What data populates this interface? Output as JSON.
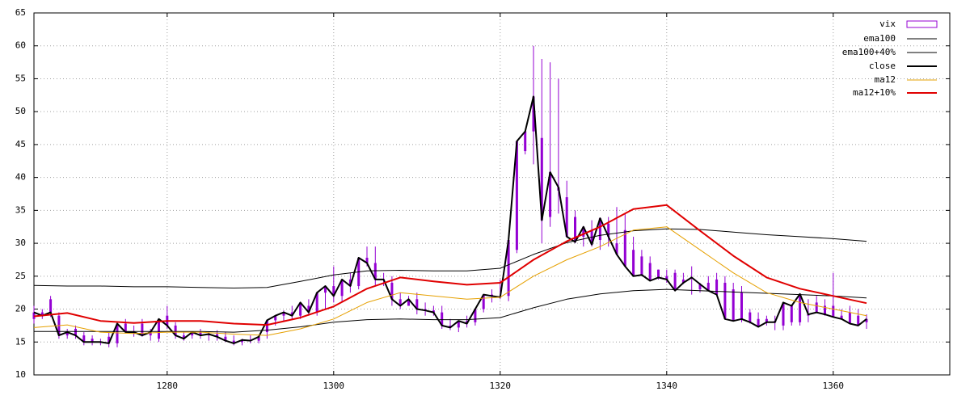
{
  "chart_data": {
    "type": "candlestick",
    "x": [
      1264,
      1265,
      1266,
      1267,
      1268,
      1269,
      1270,
      1271,
      1272,
      1273,
      1274,
      1275,
      1276,
      1277,
      1278,
      1279,
      1280,
      1281,
      1282,
      1283,
      1284,
      1285,
      1286,
      1287,
      1288,
      1289,
      1290,
      1291,
      1292,
      1293,
      1294,
      1295,
      1296,
      1297,
      1298,
      1299,
      1300,
      1301,
      1302,
      1303,
      1304,
      1305,
      1306,
      1307,
      1308,
      1309,
      1310,
      1311,
      1312,
      1313,
      1314,
      1315,
      1316,
      1317,
      1318,
      1319,
      1320,
      1321,
      1322,
      1323,
      1324,
      1325,
      1326,
      1327,
      1328,
      1329,
      1330,
      1331,
      1332,
      1333,
      1334,
      1335,
      1336,
      1337,
      1338,
      1339,
      1340,
      1341,
      1342,
      1343,
      1344,
      1345,
      1346,
      1347,
      1348,
      1349,
      1350,
      1351,
      1352,
      1353,
      1354,
      1355,
      1356,
      1357,
      1358,
      1359,
      1360,
      1361,
      1362,
      1363,
      1364
    ],
    "series": [
      {
        "name": "vix",
        "color": "#9400d3",
        "open": [
          18.5,
          19.5,
          21.5,
          19,
          16,
          17,
          16,
          15.5,
          15,
          15.8,
          14.8,
          17.8,
          16.5,
          17.8,
          16,
          15.5,
          19,
          17.5,
          16,
          16,
          16.5,
          16,
          16.2,
          15.8,
          15.2,
          15,
          15.3,
          15.2,
          16.5,
          18.3,
          19,
          19.5,
          19,
          20.5,
          19.5,
          22.5,
          23.5,
          22,
          24.5,
          23.5,
          27.8,
          27,
          24.5,
          24,
          21.5,
          20.5,
          21.5,
          20,
          19.8,
          19.5,
          17.5,
          17.2,
          18.2,
          18,
          20,
          22.2,
          22,
          22,
          29,
          44,
          47,
          46,
          34,
          38,
          37,
          34,
          31,
          32,
          30.5,
          33,
          30,
          32,
          29,
          28,
          27,
          26,
          25,
          25.5,
          24.5,
          24.8,
          23,
          24,
          24.5,
          24,
          23,
          22.5,
          19.5,
          18.5,
          18.5,
          18.2,
          17.5,
          18,
          18,
          19,
          21,
          20.5,
          20.5,
          19,
          19.5,
          19,
          18
        ],
        "high": [
          20.5,
          20,
          22,
          19.5,
          17,
          17.5,
          16.5,
          16,
          15.5,
          16.5,
          15.5,
          18.5,
          17.5,
          18.5,
          17,
          16.5,
          20.5,
          18,
          16.5,
          16.5,
          17,
          16.5,
          16.8,
          16.5,
          16,
          15.5,
          16,
          16,
          17,
          19,
          19.8,
          20.5,
          20,
          21.5,
          20.5,
          23.5,
          26.5,
          23,
          25.5,
          24.5,
          29.5,
          29.5,
          25.5,
          25,
          22.5,
          22,
          22.5,
          21,
          20.5,
          20.5,
          18.5,
          18,
          19,
          18.5,
          21,
          23,
          24.5,
          22.8,
          31,
          46,
          60,
          58,
          57.5,
          55,
          39.5,
          35,
          32,
          33.5,
          31.5,
          34,
          35.5,
          34.5,
          31,
          29,
          28,
          26,
          26,
          26,
          25.5,
          26.5,
          24,
          25,
          25.5,
          25,
          24,
          23.5,
          20,
          19.5,
          19,
          19,
          18.5,
          18.8,
          18.8,
          21.5,
          22,
          21.5,
          25.5,
          20,
          20.5,
          20,
          19.2
        ],
        "low": [
          17.8,
          18.5,
          18.8,
          15.5,
          15.5,
          15.5,
          14.5,
          14.5,
          14.5,
          14.2,
          14.2,
          16.5,
          15.8,
          15.8,
          15.2,
          15,
          17,
          15.5,
          15.2,
          15.5,
          15.5,
          15.2,
          15.2,
          15,
          14.5,
          14.5,
          14.8,
          14.8,
          15.5,
          17.5,
          18.2,
          18.5,
          18.5,
          19,
          19,
          20,
          21,
          21,
          22.5,
          23,
          26.5,
          23.5,
          23.5,
          20.5,
          20,
          20.5,
          19.2,
          19,
          19,
          17,
          16.8,
          16.5,
          17.2,
          17.5,
          19.5,
          21,
          21.5,
          21.2,
          28.5,
          43.5,
          42,
          30,
          32.5,
          34.5,
          36.5,
          30,
          29.5,
          29.5,
          29,
          29.5,
          29,
          28,
          27.5,
          25,
          24.5,
          24.5,
          24,
          23.5,
          23.8,
          22.2,
          22.5,
          23.5,
          23.5,
          22.5,
          22,
          18,
          17.8,
          17.8,
          17.5,
          16.8,
          16.8,
          17.5,
          17.5,
          18,
          19.8,
          19,
          18.8,
          18.5,
          18.5,
          17.5,
          17
        ]
      },
      {
        "name": "ema100",
        "color": "#000000",
        "x": [
          1264,
          1268,
          1272,
          1276,
          1280,
          1284,
          1288,
          1292,
          1296,
          1300,
          1304,
          1308,
          1312,
          1316,
          1320,
          1324,
          1328,
          1332,
          1336,
          1340,
          1344,
          1348,
          1352,
          1356,
          1360,
          1364
        ],
        "values": [
          16.6,
          16.6,
          16.6,
          16.6,
          16.6,
          16.6,
          16.5,
          16.8,
          17.3,
          18,
          18.4,
          18.5,
          18.4,
          18.4,
          18.7,
          20.2,
          21.5,
          22.3,
          22.8,
          23,
          22.8,
          22.6,
          22.4,
          22.2,
          22,
          21.7
        ]
      },
      {
        "name": "ema100+40%",
        "color": "#000000",
        "x": [
          1264,
          1268,
          1272,
          1276,
          1280,
          1284,
          1288,
          1292,
          1296,
          1300,
          1304,
          1308,
          1312,
          1316,
          1320,
          1324,
          1328,
          1332,
          1336,
          1340,
          1344,
          1348,
          1352,
          1356,
          1360,
          1364
        ],
        "values": [
          23.6,
          23.5,
          23.5,
          23.4,
          23.4,
          23.3,
          23.2,
          23.3,
          24.2,
          25.2,
          25.8,
          25.9,
          25.8,
          25.8,
          26.2,
          28.3,
          30.1,
          31.2,
          31.9,
          32.2,
          32.1,
          31.7,
          31.3,
          31,
          30.7,
          30.3
        ]
      },
      {
        "name": "close",
        "color": "#000000",
        "values": [
          19.5,
          19,
          19.5,
          16,
          16.5,
          16,
          15,
          15,
          15,
          14.8,
          17.8,
          16.5,
          16.5,
          16,
          16.5,
          18.5,
          17.5,
          16,
          15.5,
          16.5,
          16,
          16.2,
          15.8,
          15.2,
          14.8,
          15.3,
          15.2,
          15.8,
          18.3,
          19,
          19.5,
          19,
          21,
          19.5,
          22.5,
          23.5,
          22,
          24.5,
          23.5,
          27.8,
          27,
          24.5,
          24.5,
          21.5,
          20.5,
          21.5,
          20,
          19.8,
          19.5,
          17.5,
          17.2,
          18.2,
          17.8,
          20,
          22.2,
          22,
          21.8,
          30.5,
          45.5,
          47,
          52.3,
          33.5,
          40.8,
          38.5,
          31,
          30.2,
          32.5,
          29.8,
          33.8,
          31,
          28.3,
          26.5,
          25,
          25.2,
          24.3,
          24.8,
          24.5,
          22.8,
          24,
          24.8,
          23.8,
          22.8,
          22.2,
          18.5,
          18.2,
          18.5,
          18,
          17.3,
          18,
          18,
          21,
          20.5,
          22.3,
          19.2,
          19.5,
          19.2,
          18.8,
          18.5,
          17.8,
          17.5,
          18.5
        ]
      },
      {
        "name": "ma12",
        "color": "#e6a000",
        "x": [
          1264,
          1268,
          1272,
          1276,
          1280,
          1284,
          1288,
          1292,
          1296,
          1300,
          1304,
          1308,
          1312,
          1316,
          1320,
          1324,
          1328,
          1332,
          1336,
          1340,
          1344,
          1348,
          1352,
          1356,
          1360,
          1364
        ],
        "values": [
          17.2,
          17.6,
          16.5,
          16.3,
          16.5,
          16.5,
          16.2,
          16,
          17,
          18.5,
          21,
          22.5,
          22,
          21.5,
          21.8,
          25,
          27.5,
          29.5,
          32,
          32.5,
          29,
          25.5,
          22.5,
          21,
          20,
          19
        ]
      },
      {
        "name": "ma12+10%",
        "color": "#e00000",
        "x": [
          1264,
          1268,
          1272,
          1276,
          1280,
          1284,
          1288,
          1292,
          1296,
          1300,
          1304,
          1308,
          1312,
          1316,
          1320,
          1324,
          1328,
          1332,
          1336,
          1340,
          1344,
          1348,
          1352,
          1356,
          1360,
          1364
        ],
        "values": [
          18.9,
          19.4,
          18.2,
          17.9,
          18.2,
          18.2,
          17.8,
          17.6,
          18.7,
          20.4,
          23.1,
          24.8,
          24.2,
          23.7,
          24,
          27.5,
          30.3,
          32.5,
          35.2,
          35.8,
          31.9,
          28.1,
          24.8,
          23.1,
          22,
          20.9
        ]
      }
    ],
    "xlim": [
      1264,
      1374
    ],
    "ylim": [
      10,
      65
    ],
    "xticks": [
      1280,
      1300,
      1320,
      1340,
      1360
    ],
    "yticks": [
      10,
      15,
      20,
      25,
      30,
      35,
      40,
      45,
      50,
      55,
      60,
      65
    ],
    "grid": true,
    "legend": "top-right"
  }
}
